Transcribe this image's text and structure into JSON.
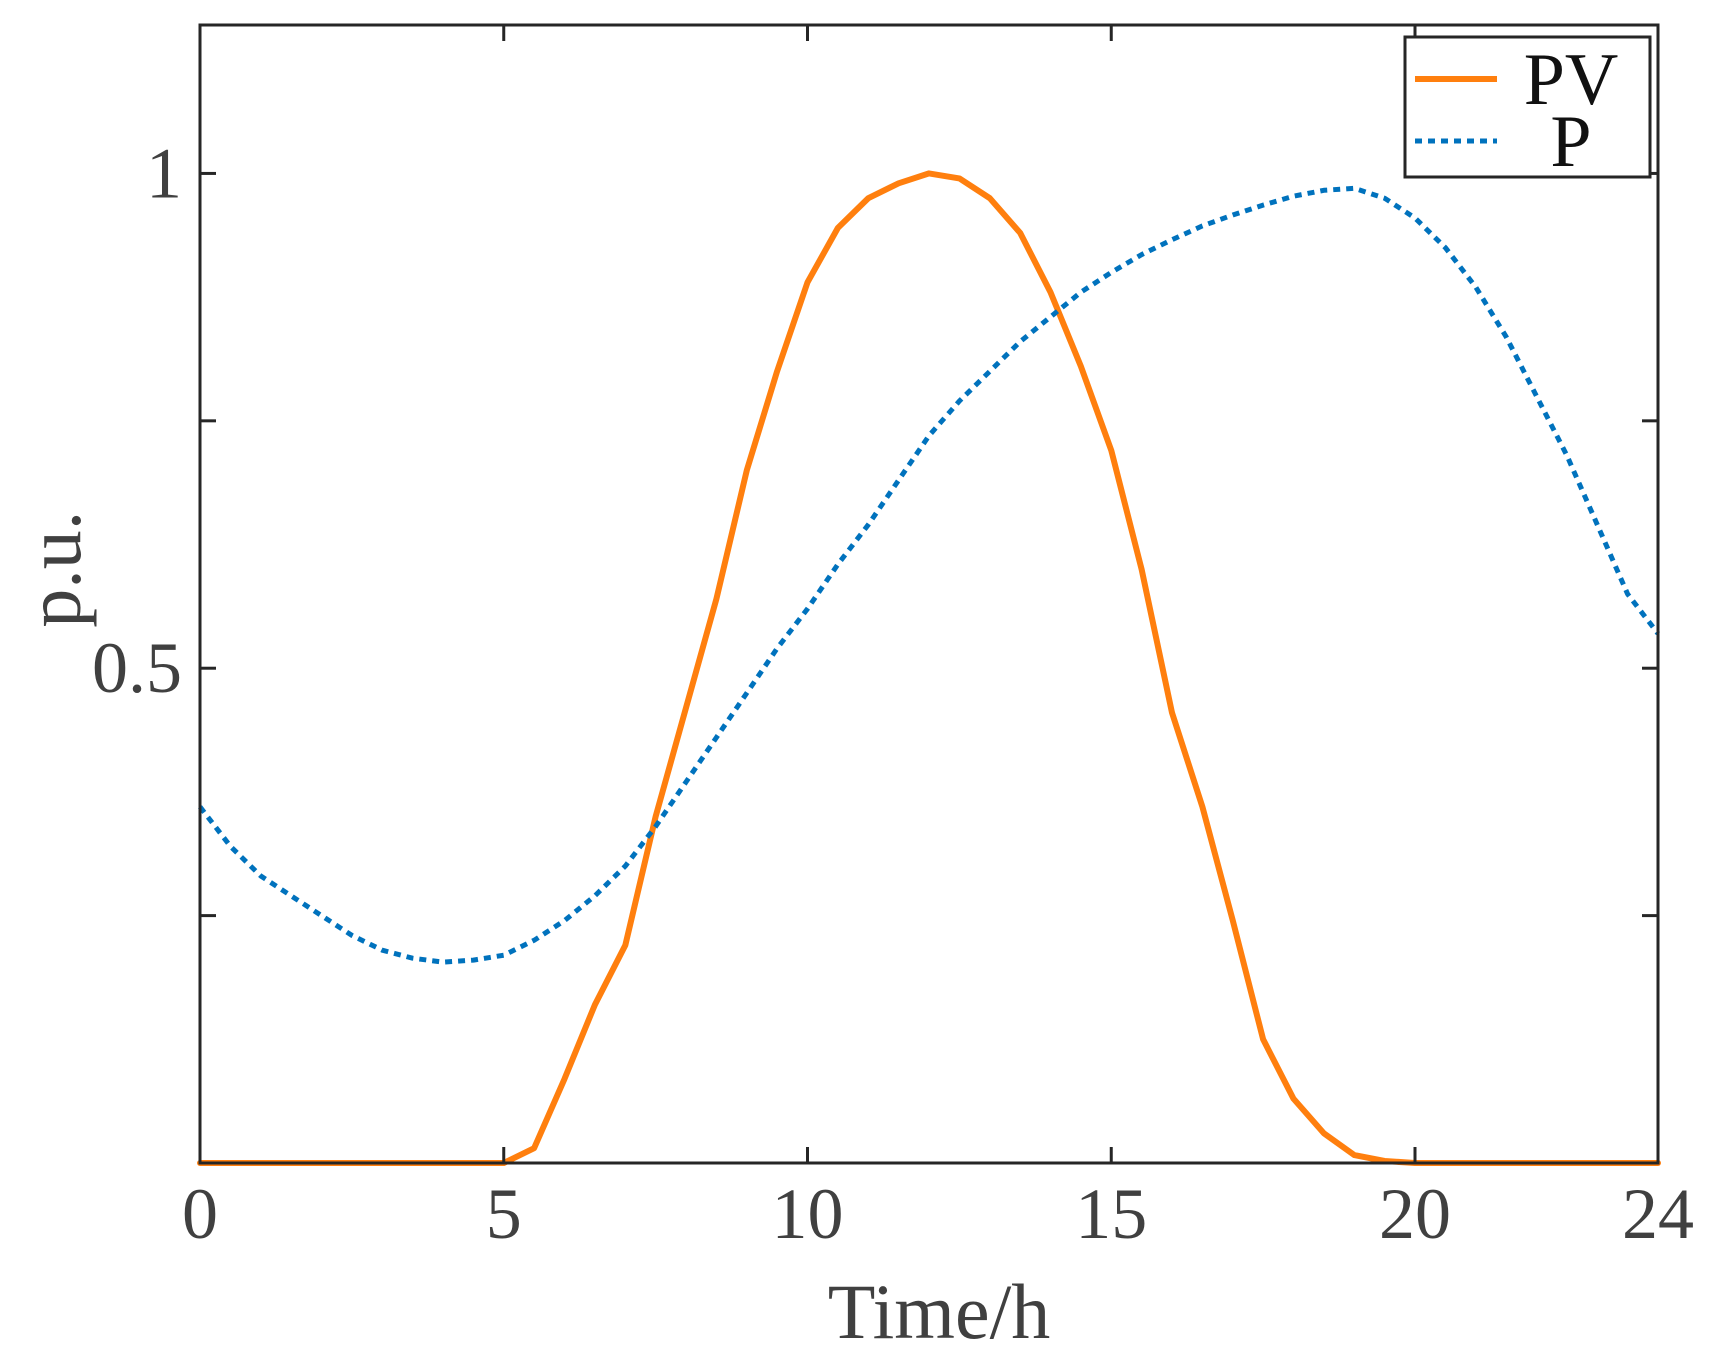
{
  "chart_data": {
    "type": "line",
    "title": "",
    "xlabel": "Time/h",
    "ylabel": "p.u.",
    "xlim": [
      0,
      24
    ],
    "ylim": [
      0,
      1.15
    ],
    "xticks": [
      0,
      5,
      10,
      15,
      20,
      24
    ],
    "xtick_labels": [
      "0",
      "5",
      "10",
      "15",
      "20",
      "24"
    ],
    "yticks": [
      0.25,
      0.5,
      0.75,
      1
    ],
    "ytick_labels": [
      "",
      "0.5",
      "",
      "1"
    ],
    "grid": false,
    "legend_position": "top-right",
    "series": [
      {
        "name": "PV",
        "color": "#ff7f0e",
        "style": "solid",
        "x": [
          0,
          1,
          2,
          3,
          4,
          5,
          5.5,
          6,
          6.5,
          7,
          7.5,
          8,
          8.5,
          9,
          9.5,
          10,
          10.5,
          11,
          11.5,
          12,
          12.5,
          13,
          13.5,
          14,
          14.5,
          15,
          15.5,
          16,
          16.5,
          17,
          17.5,
          18,
          18.5,
          19,
          19.5,
          20,
          21,
          22,
          23,
          24
        ],
        "y": [
          0,
          0,
          0,
          0,
          0,
          0,
          0.015,
          0.085,
          0.16,
          0.22,
          0.35,
          0.46,
          0.57,
          0.7,
          0.8,
          0.89,
          0.945,
          0.975,
          0.99,
          1.0,
          0.995,
          0.975,
          0.94,
          0.88,
          0.805,
          0.72,
          0.6,
          0.455,
          0.36,
          0.245,
          0.125,
          0.065,
          0.03,
          0.008,
          0.002,
          0,
          0,
          0,
          0,
          0
        ]
      },
      {
        "name": "P",
        "color": "#0072bd",
        "style": "dotted",
        "x": [
          0,
          0.5,
          1,
          1.5,
          2,
          2.5,
          3,
          3.5,
          4,
          4.5,
          5,
          5.5,
          6,
          6.5,
          7,
          7.5,
          8,
          8.5,
          9,
          9.5,
          10,
          10.5,
          11,
          11.5,
          12,
          12.5,
          13,
          13.5,
          14,
          14.5,
          15,
          15.5,
          16,
          16.5,
          17,
          17.5,
          18,
          18.5,
          19,
          19.5,
          20,
          20.5,
          21,
          21.5,
          22,
          22.5,
          23,
          23.5,
          24
        ],
        "y": [
          0.36,
          0.32,
          0.29,
          0.27,
          0.25,
          0.23,
          0.215,
          0.207,
          0.203,
          0.205,
          0.21,
          0.225,
          0.245,
          0.27,
          0.3,
          0.34,
          0.385,
          0.43,
          0.475,
          0.52,
          0.56,
          0.605,
          0.645,
          0.69,
          0.735,
          0.77,
          0.8,
          0.83,
          0.855,
          0.88,
          0.9,
          0.918,
          0.933,
          0.947,
          0.958,
          0.968,
          0.977,
          0.983,
          0.985,
          0.975,
          0.955,
          0.925,
          0.885,
          0.835,
          0.775,
          0.715,
          0.645,
          0.575,
          0.535
        ]
      }
    ]
  }
}
